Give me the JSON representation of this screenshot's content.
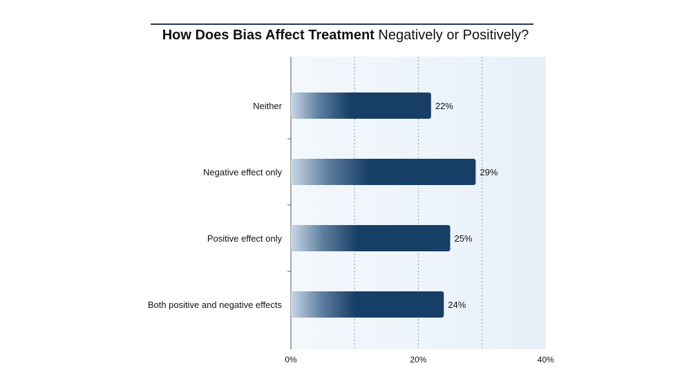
{
  "chart_data": {
    "type": "bar",
    "orientation": "horizontal",
    "title_bold": "How Does Bias Affect Treatment",
    "title_rest": " Negatively or Positively?",
    "categories": [
      "Neither",
      "Negative effect only",
      "Positive effect only",
      "Both positive and negative effects"
    ],
    "values": [
      22,
      29,
      25,
      24
    ],
    "value_labels": [
      "22%",
      "29%",
      "25%",
      "24%"
    ],
    "xlim": [
      0,
      40
    ],
    "x_ticks": [
      0,
      20,
      40
    ],
    "x_tick_labels": [
      "0%",
      "20%",
      "40%"
    ],
    "grid": "vertical dotted at 10% intervals",
    "legend": "none",
    "colors": {
      "bar_dark": "#173e66",
      "bar_light": "#c9d7e6",
      "plot_background": "#e9f1fa",
      "title_rule": "#1f3b5c"
    }
  }
}
